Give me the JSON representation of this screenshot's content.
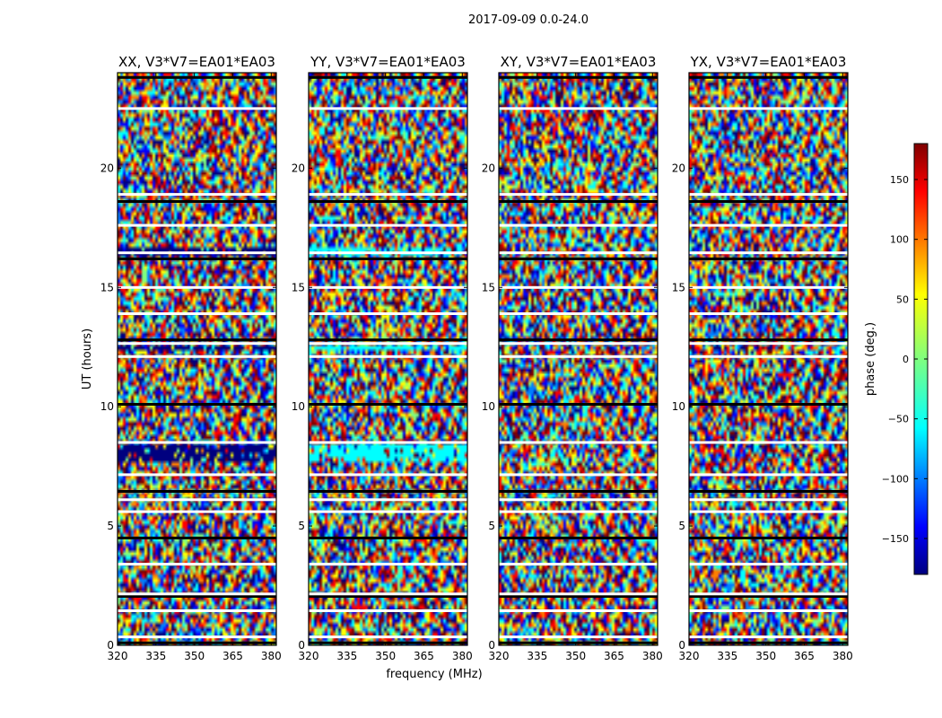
{
  "chart_data": {
    "type": "heatmap",
    "suptitle": "2017-09-09 0.0-24.0",
    "xlabel": "frequency (MHz)",
    "ylabel": "UT (hours)",
    "xlim": [
      320,
      382
    ],
    "ylim": [
      0,
      24
    ],
    "xticks": [
      320,
      335,
      350,
      365,
      380
    ],
    "yticks": [
      0,
      5,
      10,
      15,
      20
    ],
    "colormap": "jet",
    "colorbar": {
      "label": "phase (deg.)",
      "range": [
        -180,
        180
      ],
      "ticks": [
        -150,
        -100,
        -50,
        0,
        50,
        100,
        150
      ]
    },
    "panels": [
      {
        "title": "XX, V3*V7=EA01*EA03",
        "product": "XX"
      },
      {
        "title": "YY, V3*V7=EA01*EA03",
        "product": "YY"
      },
      {
        "title": "XY, V3*V7=EA01*EA03",
        "product": "XY"
      },
      {
        "title": "YX, V3*V7=EA01*EA03",
        "product": "YX"
      }
    ],
    "flagged_rows_hours": [
      0.1,
      0.35,
      1.45,
      2.05,
      2.15,
      3.4,
      4.5,
      5.6,
      6.1,
      6.45,
      7.15,
      8.5,
      10.1,
      12.1,
      12.65,
      12.8,
      13.9,
      15.0,
      16.2,
      16.45,
      17.6,
      18.6,
      18.9,
      22.5,
      23.8
    ]
  },
  "colors": {
    "jet": [
      "#00007f",
      "#0000ff",
      "#007fff",
      "#00ffff",
      "#7fff7f",
      "#ffff00",
      "#ff7f00",
      "#ff0000",
      "#7f0000"
    ],
    "axis": "#000000",
    "flag": "#ffffff"
  }
}
